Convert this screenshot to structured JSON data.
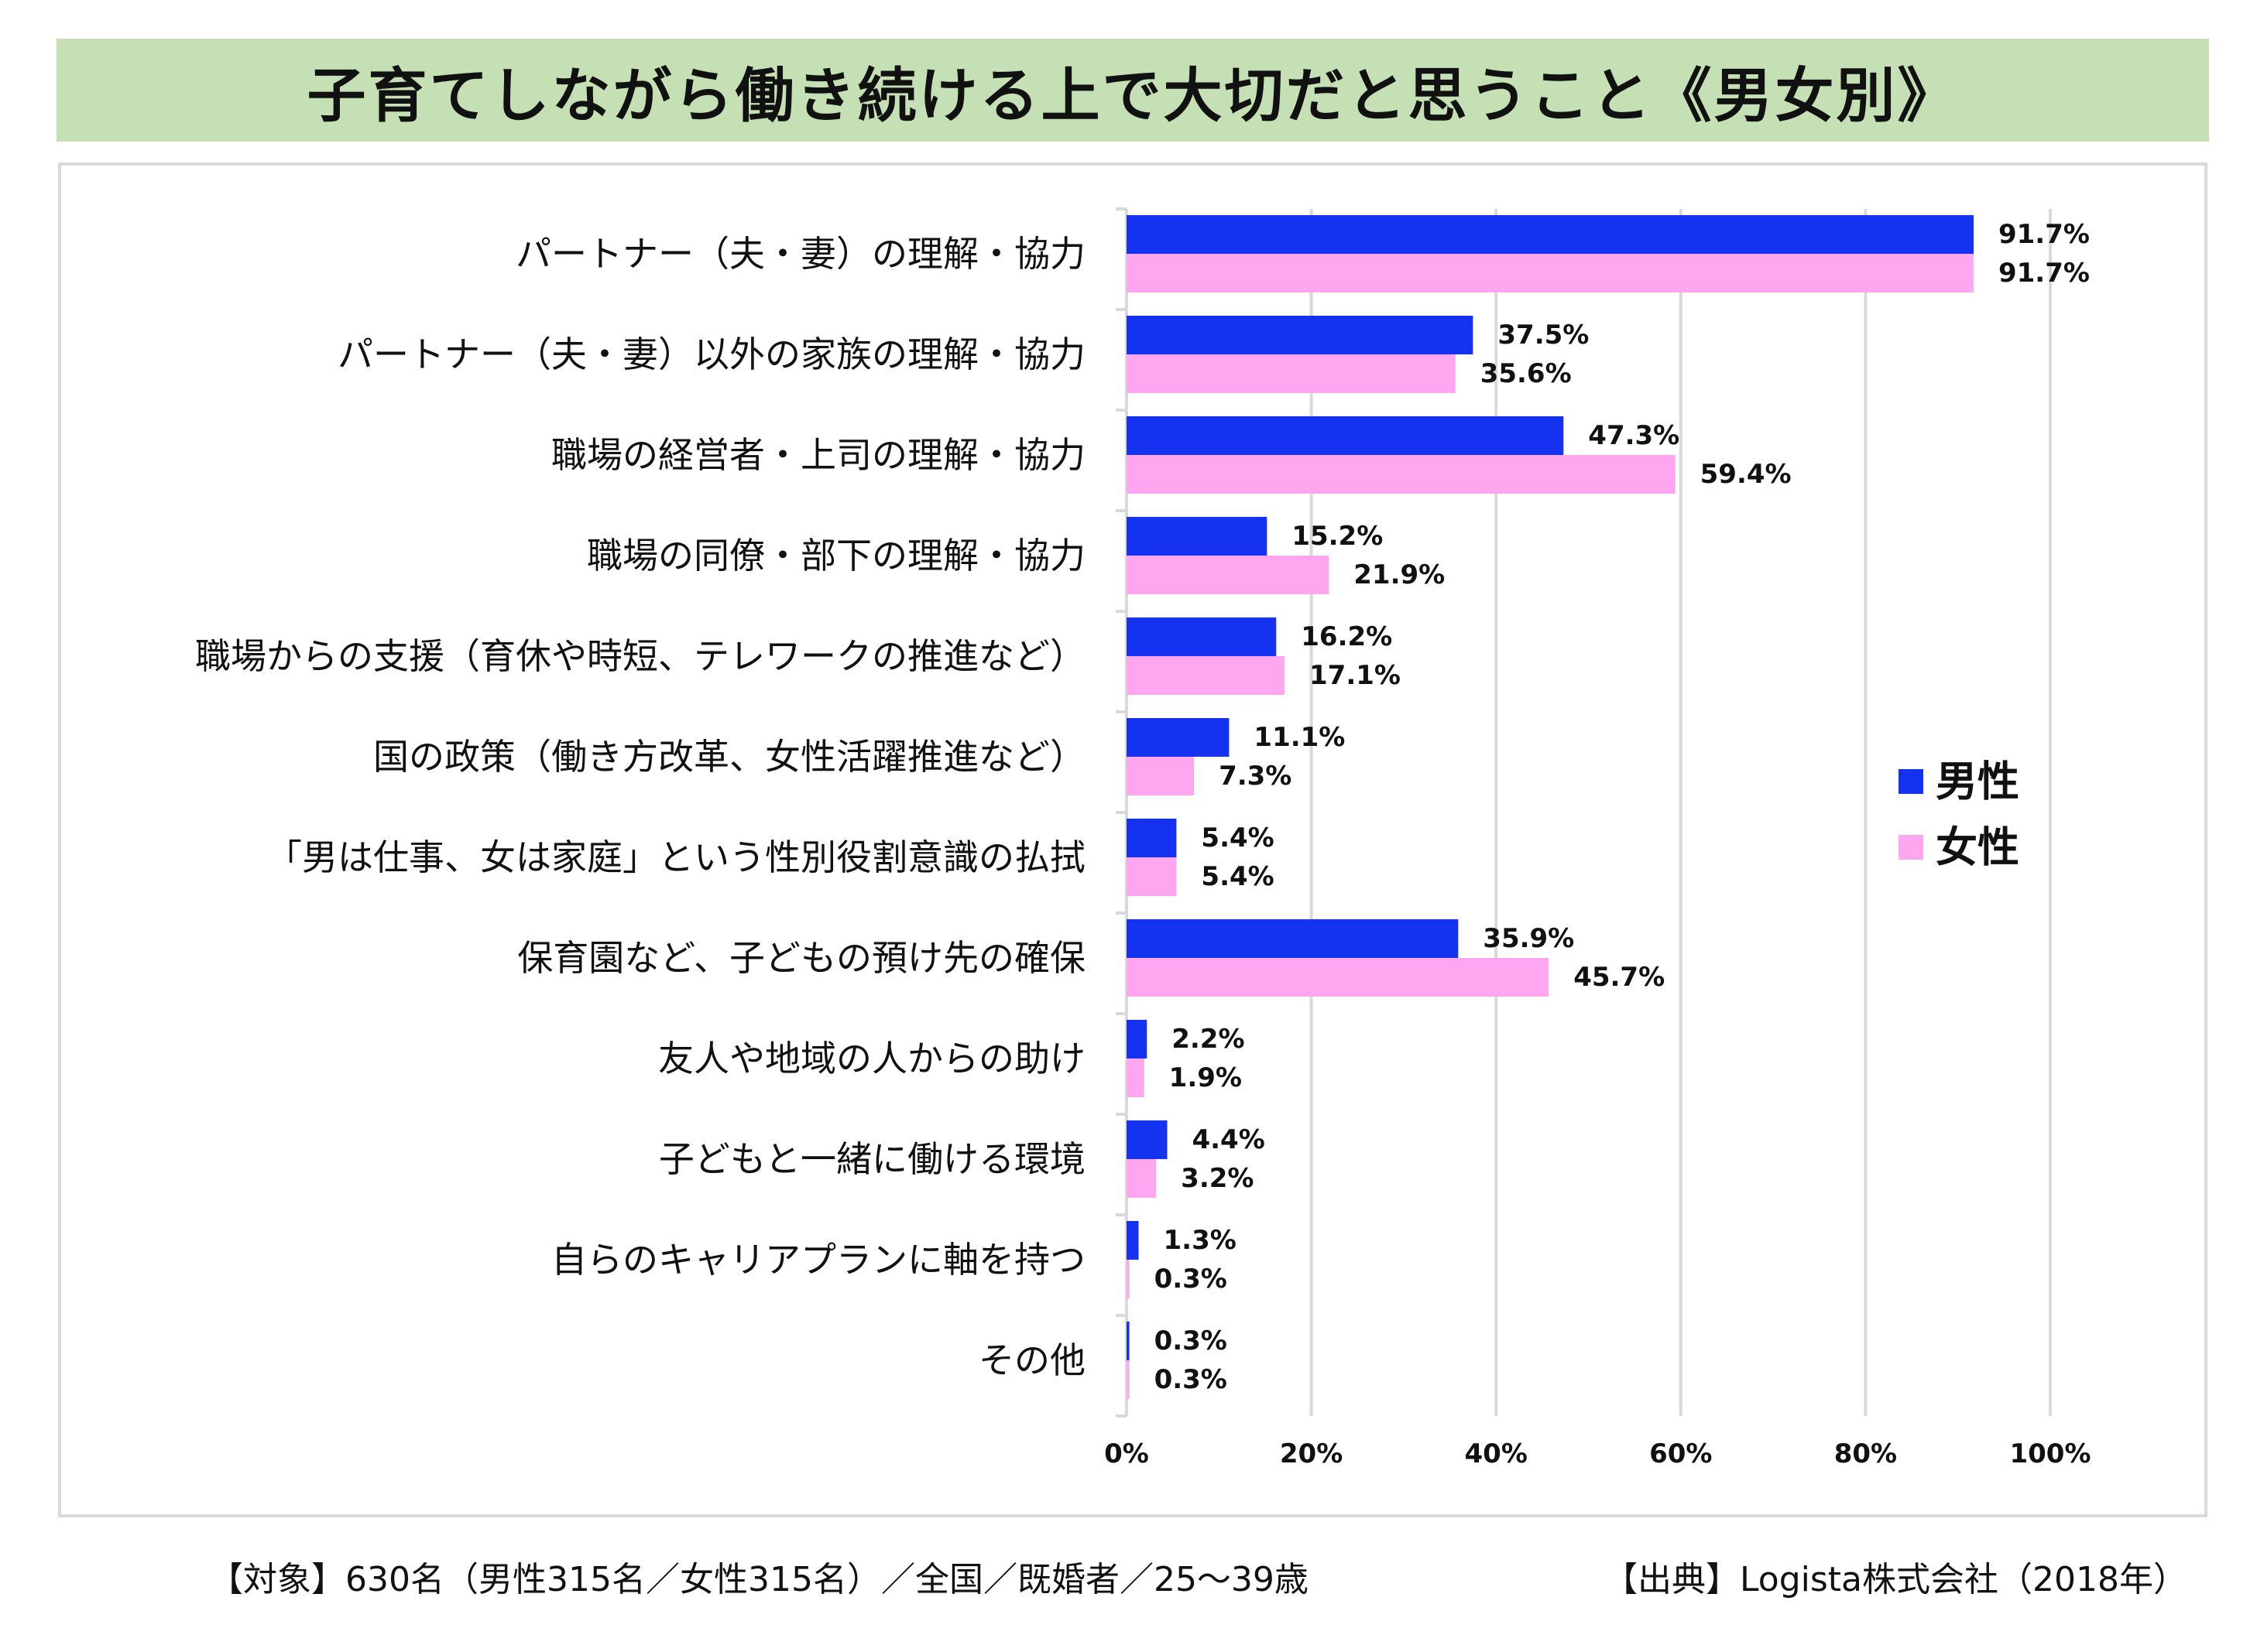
{
  "title": "子育てしながら働き続ける上で大切だと思うこと《男女別》",
  "footer": {
    "target": "【対象】630名（男性315名／女性315名）／全国／既婚者／25〜39歳",
    "source": "【出典】Logista株式会社（2018年）"
  },
  "colors": {
    "male": "#1432f0",
    "female": "#ffa6f0",
    "grid": "#d9d9d9",
    "title_bg": "#c5e0b4"
  },
  "chart_data": {
    "type": "bar",
    "orientation": "horizontal",
    "title": "子育てしながら働き続ける上で大切だと思うこと《男女別》",
    "categories": [
      "パートナー（夫・妻）の理解・協力",
      "パートナー（夫・妻）以外の家族の理解・協力",
      "職場の経営者・上司の理解・協力",
      "職場の同僚・部下の理解・協力",
      "職場からの支援（育休や時短、テレワークの推進など）",
      "国の政策（働き方改革、女性活躍推進など）",
      "「男は仕事、女は家庭」という性別役割意識の払拭",
      "保育園など、子どもの預け先の確保",
      "友人や地域の人からの助け",
      "子どもと一緒に働ける環境",
      "自らのキャリアプランに軸を持つ",
      "その他"
    ],
    "series": [
      {
        "name": "男性",
        "color": "#1432f0",
        "values": [
          91.7,
          37.5,
          47.3,
          15.2,
          16.2,
          11.1,
          5.4,
          35.9,
          2.2,
          4.4,
          1.3,
          0.3
        ],
        "labels": [
          "91.7%",
          "37.5%",
          "47.3%",
          "15.2%",
          "16.2%",
          "11.1%",
          "5.4%",
          "35.9%",
          "2.2%",
          "4.4%",
          "1.3%",
          "0.3%"
        ]
      },
      {
        "name": "女性",
        "color": "#ffa6f0",
        "values": [
          91.7,
          35.6,
          59.4,
          21.9,
          17.1,
          7.3,
          5.4,
          45.7,
          1.9,
          3.2,
          0.3,
          0.3
        ],
        "labels": [
          "91.7%",
          "35.6%",
          "59.4%",
          "21.9%",
          "17.1%",
          "7.3%",
          "5.4%",
          "45.7%",
          "1.9%",
          "3.2%",
          "0.3%",
          "0.3%"
        ]
      }
    ],
    "xlim": [
      0,
      100
    ],
    "xticks": [
      0,
      20,
      40,
      60,
      80,
      100
    ],
    "xtick_labels": [
      "0%",
      "20%",
      "40%",
      "60%",
      "80%",
      "100%"
    ],
    "grid": true,
    "legend": {
      "position": "right",
      "entries": [
        "男性",
        "女性"
      ]
    }
  }
}
